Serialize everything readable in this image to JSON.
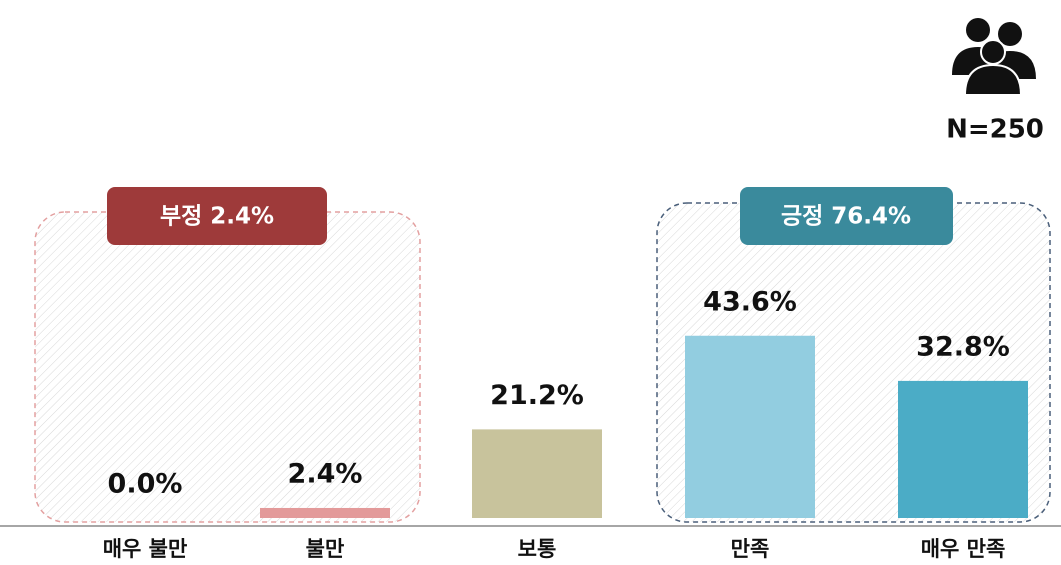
{
  "chart_data": {
    "type": "bar",
    "categories": [
      "매우 불만",
      "불만",
      "보통",
      "만족",
      "매우 만족"
    ],
    "values": [
      0.0,
      2.4,
      21.2,
      43.6,
      32.8
    ],
    "value_labels": [
      "0.0%",
      "2.4%",
      "21.2%",
      "43.6%",
      "32.8%"
    ],
    "colors": [
      "#e39a9a",
      "#e39a9a",
      "#c8c39c",
      "#92cde0",
      "#4bacc6"
    ],
    "ylim": [
      0,
      50
    ],
    "annotations": [
      "부정 2.4%",
      "긍정 76.4%",
      "N=250"
    ]
  }
}
